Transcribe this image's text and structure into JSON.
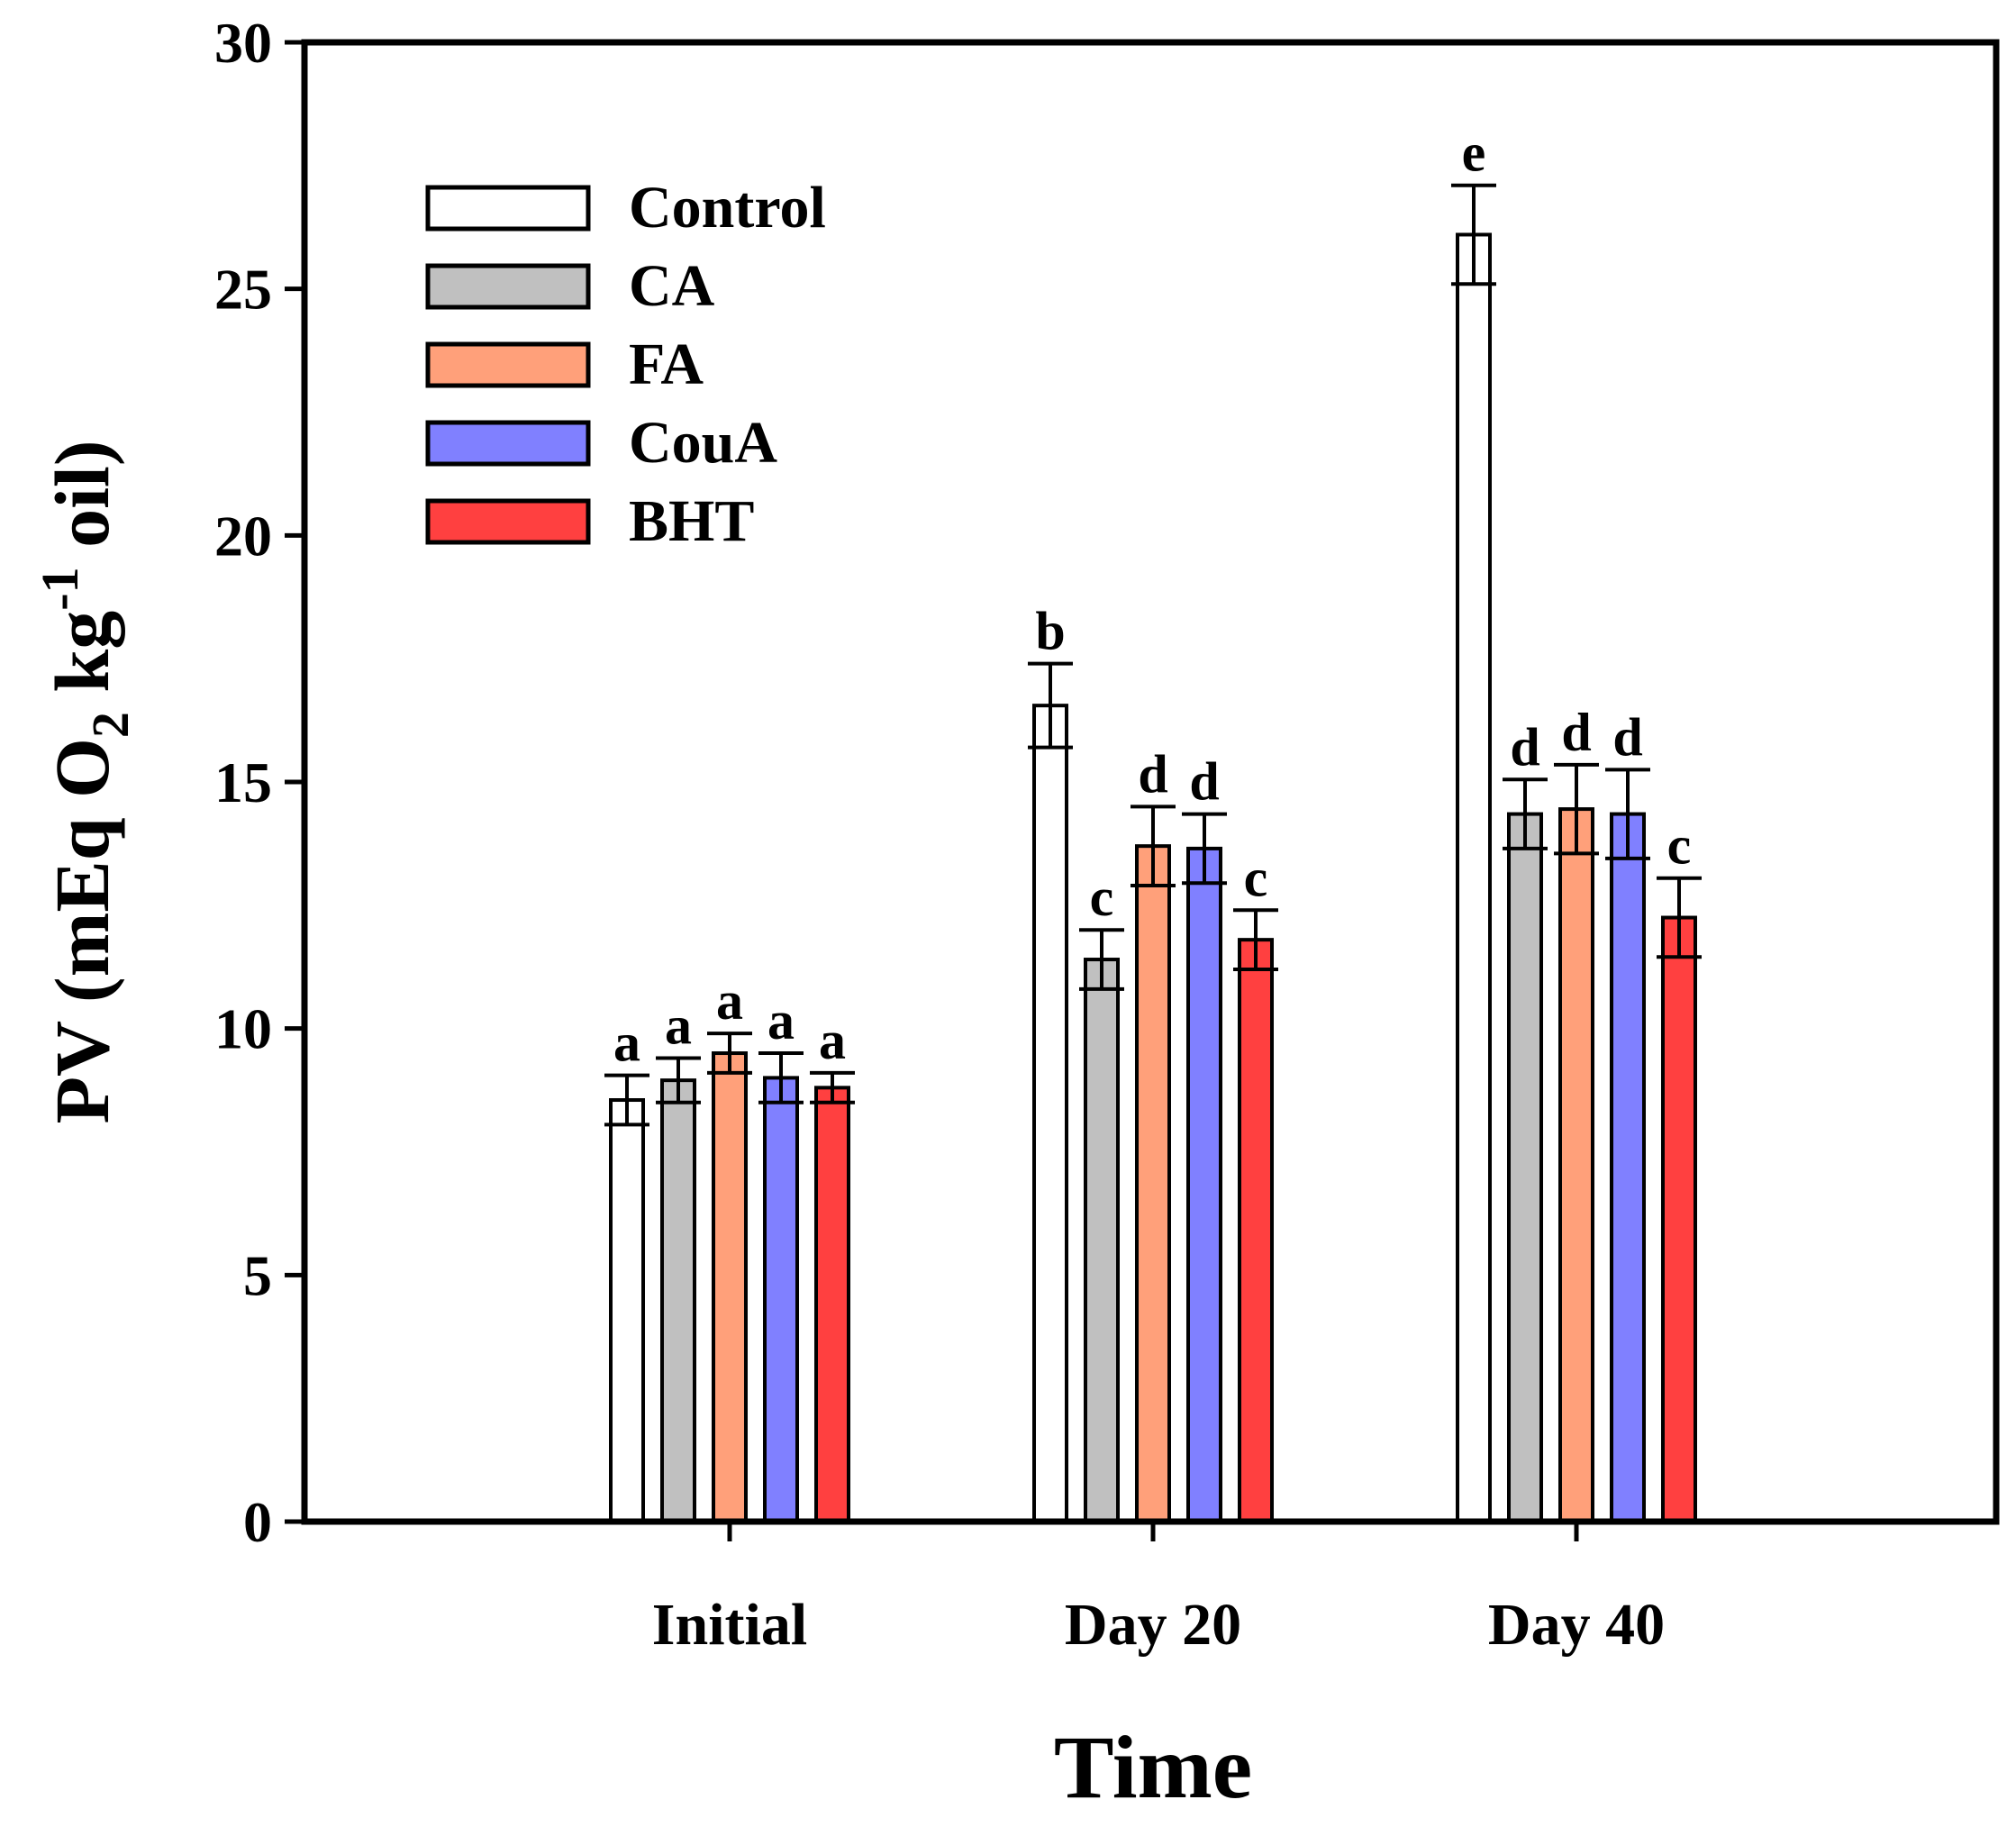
{
  "chart_data": {
    "type": "bar",
    "title": "",
    "xlabel": "Time",
    "ylabel": "PV (mEq O2 kg-1 oil)",
    "ylabel_parts": {
      "pre": "PV (mEq O",
      "sub": "2",
      "mid": " kg",
      "sup": "-1",
      "post": " oil)"
    },
    "ylim": [
      0,
      30
    ],
    "yticks": [
      0,
      5,
      10,
      15,
      20,
      25,
      30
    ],
    "categories": [
      "Initial",
      "Day 20",
      "Day 40"
    ],
    "legend_position": "top-left",
    "series": [
      {
        "name": "Control",
        "color": "#ffffff",
        "values": [
          8.55,
          16.55,
          26.1
        ],
        "errors": [
          0.5,
          0.85,
          1.0
        ],
        "letters": [
          "a",
          "b",
          "e"
        ]
      },
      {
        "name": "CA",
        "color": "#c0c0c0",
        "values": [
          8.95,
          11.4,
          14.35
        ],
        "errors": [
          0.45,
          0.6,
          0.7
        ],
        "letters": [
          "a",
          "c",
          "d"
        ]
      },
      {
        "name": "FA",
        "color": "#ffa07a",
        "values": [
          9.5,
          13.7,
          14.45
        ],
        "errors": [
          0.4,
          0.8,
          0.9
        ],
        "letters": [
          "a",
          "d",
          "d"
        ]
      },
      {
        "name": "CouA",
        "color": "#8080ff",
        "values": [
          9.0,
          13.65,
          14.35
        ],
        "errors": [
          0.5,
          0.7,
          0.9
        ],
        "letters": [
          "a",
          "d",
          "d"
        ]
      },
      {
        "name": "BHT",
        "color": "#ff4040",
        "values": [
          8.8,
          11.8,
          12.25
        ],
        "errors": [
          0.3,
          0.6,
          0.8
        ],
        "letters": [
          "a",
          "c",
          "c"
        ]
      }
    ]
  }
}
